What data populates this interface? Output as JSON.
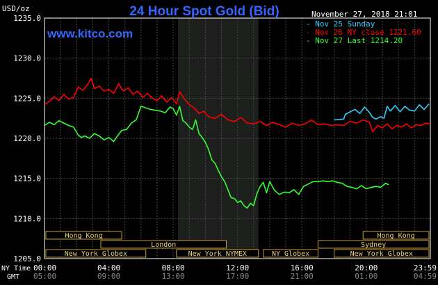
{
  "chart_data": {
    "type": "line",
    "title": "24 Hour Spot Gold (Bid)",
    "ylabel": "USD/oz",
    "site": "www.kitco.com",
    "timestamp": "November 27, 2018 21:01",
    "ylim": [
      1205,
      1235
    ],
    "y_ticks": [
      "1235.0",
      "1230.0",
      "1225.0",
      "1220.0",
      "1215.0",
      "1210.0",
      "1205.0"
    ],
    "x_axis_ny_label": "NY Time",
    "x_axis_gmt_label": "GMT",
    "x_ticks_ny": [
      "00:00",
      "04:00",
      "08:00",
      "12:00",
      "16:00",
      "20:00",
      "23:59"
    ],
    "x_ticks_gmt": [
      "05:00",
      "09:00",
      "13:00",
      "17:00",
      "21:00",
      "01:00",
      "04:59"
    ],
    "x_tick_hours": [
      0,
      4,
      8,
      12,
      16,
      20,
      23.983
    ],
    "shaded_hours": [
      8.3,
      13.3
    ],
    "grid": true,
    "legend_position": "top-right",
    "series": [
      {
        "name": "Nov 25 Sunday",
        "color": "#33ccff",
        "x": [
          18.0,
          18.6,
          18.7,
          19.0,
          19.3,
          19.6,
          19.9,
          20.2,
          20.4,
          20.6,
          20.9,
          21.1,
          21.3,
          21.5,
          21.8,
          22.1,
          22.4,
          22.7,
          23.0,
          23.3,
          23.6,
          23.9
        ],
        "values": [
          1222.3,
          1222.4,
          1223.0,
          1223.3,
          1223.6,
          1223.1,
          1223.9,
          1223.2,
          1222.6,
          1222.4,
          1222.7,
          1222.5,
          1224.0,
          1223.4,
          1224.1,
          1223.3,
          1224.0,
          1223.5,
          1223.4,
          1224.2,
          1223.6,
          1224.3
        ]
      },
      {
        "name": "Nov 26 NY close 1221.60",
        "color": "#ff0000",
        "x": [
          0.0,
          0.3,
          0.6,
          0.9,
          1.2,
          1.5,
          1.8,
          2.1,
          2.4,
          2.7,
          2.9,
          3.1,
          3.4,
          3.7,
          4.0,
          4.3,
          4.6,
          4.9,
          5.2,
          5.5,
          5.8,
          6.1,
          6.4,
          6.7,
          7.0,
          7.3,
          7.6,
          7.9,
          8.2,
          8.4,
          8.7,
          9.0,
          9.3,
          9.6,
          9.9,
          10.2,
          10.6,
          11.0,
          11.4,
          11.8,
          12.2,
          12.6,
          13.0,
          13.4,
          13.8,
          14.2,
          14.6,
          15.0,
          15.4,
          15.8,
          16.2,
          16.6,
          17.0,
          17.4,
          17.8,
          18.2,
          18.6,
          19.0,
          19.4,
          19.8,
          20.2,
          20.4,
          20.7,
          21.0,
          21.3,
          21.6,
          21.9,
          22.2,
          22.5,
          22.8,
          23.1,
          23.4,
          23.7,
          23.98
        ],
        "values": [
          1224.2,
          1224.6,
          1225.2,
          1224.7,
          1225.5,
          1224.9,
          1225.1,
          1226.4,
          1226.0,
          1226.8,
          1227.5,
          1226.2,
          1226.5,
          1225.9,
          1226.1,
          1225.6,
          1226.8,
          1225.9,
          1226.3,
          1225.5,
          1225.9,
          1225.1,
          1225.6,
          1225.0,
          1224.7,
          1225.3,
          1224.5,
          1225.1,
          1224.3,
          1225.8,
          1224.9,
          1224.2,
          1223.8,
          1223.1,
          1223.4,
          1222.7,
          1222.5,
          1223.0,
          1222.3,
          1222.1,
          1222.6,
          1221.9,
          1221.8,
          1222.1,
          1221.6,
          1222.0,
          1221.7,
          1221.4,
          1221.9,
          1221.6,
          1221.8,
          1222.3,
          1221.7,
          1221.8,
          1221.6,
          1221.7,
          1221.6,
          1222.1,
          1221.9,
          1222.3,
          1222.0,
          1220.8,
          1221.6,
          1221.3,
          1221.8,
          1221.2,
          1221.6,
          1221.4,
          1221.8,
          1221.3,
          1221.7,
          1221.6,
          1221.9,
          1221.8
        ]
      },
      {
        "name": "Nov 27 Last 1214.20",
        "color": "#33ff33",
        "x": [
          0.0,
          0.3,
          0.6,
          0.9,
          1.2,
          1.5,
          1.8,
          2.1,
          2.3,
          2.5,
          2.8,
          3.1,
          3.4,
          3.7,
          4.0,
          4.3,
          4.5,
          4.8,
          5.1,
          5.4,
          5.7,
          6.0,
          6.3,
          6.6,
          6.9,
          7.2,
          7.5,
          7.8,
          8.0,
          8.2,
          8.4,
          8.6,
          8.8,
          9.0,
          9.2,
          9.4,
          9.6,
          9.8,
          10.0,
          10.2,
          10.4,
          10.6,
          10.8,
          11.0,
          11.2,
          11.4,
          11.6,
          11.8,
          12.0,
          12.2,
          12.4,
          12.6,
          12.8,
          13.0,
          13.2,
          13.4,
          13.6,
          13.8,
          14.0,
          14.3,
          14.6,
          14.9,
          15.2,
          15.5,
          15.8,
          16.1,
          16.4,
          16.7,
          17.0,
          17.3,
          17.6,
          17.9,
          18.2,
          18.5,
          18.8,
          19.1,
          19.4,
          19.7,
          20.0,
          20.3,
          20.6,
          20.9,
          21.2,
          21.4
        ],
        "values": [
          1221.6,
          1222.0,
          1221.7,
          1222.2,
          1221.9,
          1221.6,
          1221.4,
          1220.4,
          1220.1,
          1220.3,
          1220.0,
          1220.6,
          1220.3,
          1219.8,
          1220.1,
          1219.6,
          1220.2,
          1221.0,
          1221.1,
          1221.9,
          1222.3,
          1224.0,
          1223.8,
          1223.6,
          1223.5,
          1223.4,
          1223.2,
          1223.9,
          1223.7,
          1222.9,
          1224.0,
          1222.2,
          1221.9,
          1221.4,
          1221.1,
          1222.3,
          1220.6,
          1220.1,
          1219.5,
          1218.6,
          1217.3,
          1216.9,
          1216.0,
          1215.2,
          1214.6,
          1213.6,
          1212.6,
          1212.5,
          1212.0,
          1212.2,
          1211.6,
          1211.3,
          1211.9,
          1211.6,
          1213.1,
          1214.0,
          1214.5,
          1213.2,
          1214.6,
          1213.5,
          1213.0,
          1213.3,
          1213.2,
          1213.6,
          1213.0,
          1214.0,
          1214.3,
          1214.6,
          1214.6,
          1214.7,
          1214.6,
          1214.7,
          1214.5,
          1214.4,
          1214.0,
          1213.9,
          1213.7,
          1214.1,
          1213.7,
          1213.9,
          1214.0,
          1213.9,
          1214.4,
          1214.2
        ]
      }
    ],
    "market_bars": [
      {
        "label": "Hong Kong",
        "start": 0.0,
        "end": 4.8,
        "row": 0
      },
      {
        "label": "London",
        "start": 3.5,
        "end": 11.3,
        "row": 1
      },
      {
        "label": "New York Globex",
        "start": 0.0,
        "end": 6.3,
        "row": 2
      },
      {
        "label": "New York NYMEX",
        "start": 8.2,
        "end": 13.3,
        "row": 2
      },
      {
        "label": "NY Globex",
        "start": 13.6,
        "end": 17.0,
        "row": 2
      },
      {
        "label": "Hong Kong",
        "start": 19.8,
        "end": 23.983,
        "row": 0
      },
      {
        "label": "Sydney",
        "start": 17.0,
        "end": 23.983,
        "row": 1
      },
      {
        "label": "New York Globex",
        "start": 18.0,
        "end": 23.983,
        "row": 2
      }
    ]
  }
}
